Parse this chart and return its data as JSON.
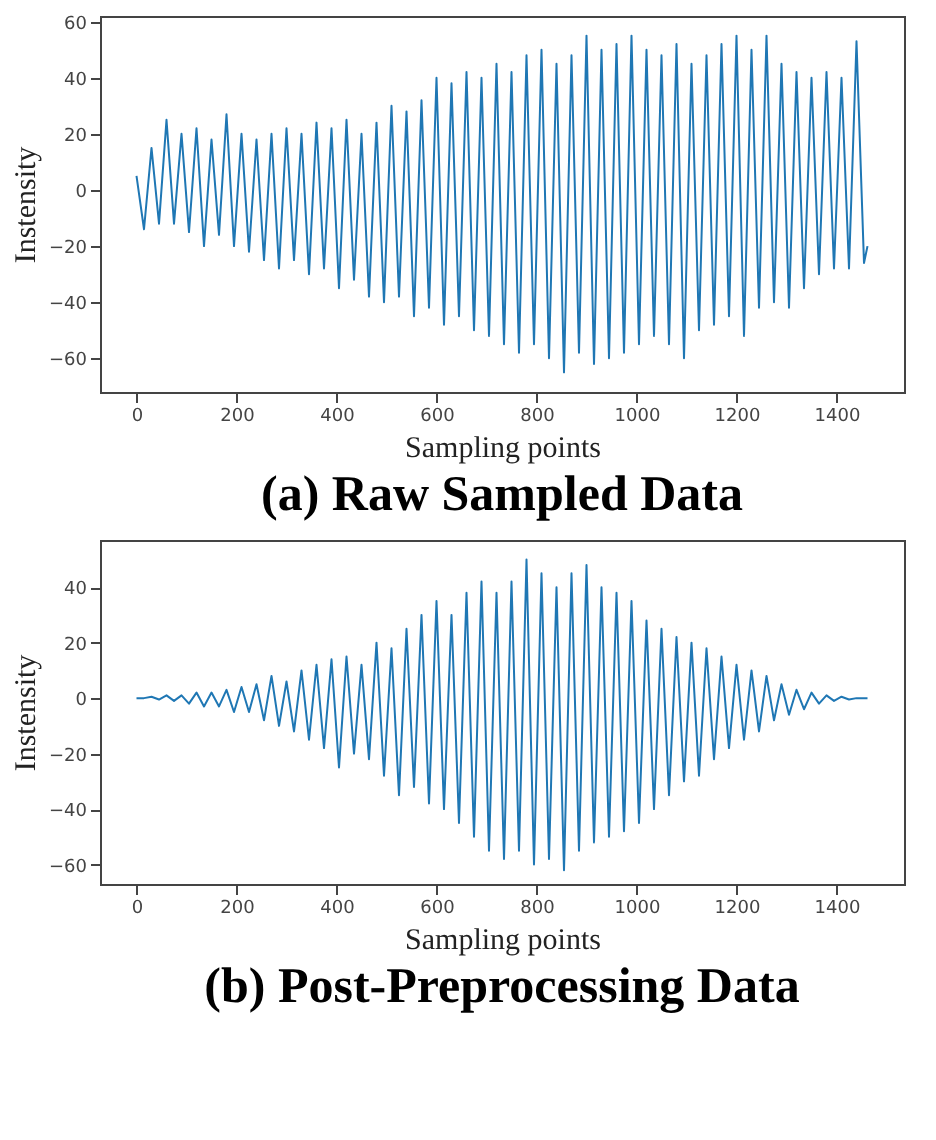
{
  "chart_data": [
    {
      "type": "line",
      "title": "(a) Raw Sampled Data",
      "xlabel": "Sampling points",
      "ylabel": "Instensity",
      "grid": false,
      "xlim": [
        -73,
        1535
      ],
      "ylim": [
        -72,
        62
      ],
      "xticks": [
        0,
        200,
        400,
        600,
        800,
        1000,
        1200,
        1400
      ],
      "yticks": [
        -60,
        -40,
        -20,
        0,
        20,
        40,
        60
      ],
      "x": [
        0,
        15,
        30,
        45,
        60,
        75,
        90,
        105,
        120,
        135,
        150,
        165,
        180,
        195,
        210,
        225,
        240,
        255,
        270,
        285,
        300,
        315,
        330,
        345,
        360,
        375,
        390,
        405,
        420,
        435,
        450,
        465,
        480,
        495,
        510,
        525,
        540,
        555,
        570,
        585,
        600,
        615,
        630,
        645,
        660,
        675,
        690,
        705,
        720,
        735,
        750,
        765,
        780,
        795,
        810,
        825,
        840,
        855,
        870,
        885,
        900,
        915,
        930,
        945,
        960,
        975,
        990,
        1005,
        1020,
        1035,
        1050,
        1065,
        1080,
        1095,
        1110,
        1125,
        1140,
        1155,
        1170,
        1185,
        1200,
        1215,
        1230,
        1245,
        1260,
        1275,
        1290,
        1305,
        1320,
        1335,
        1350,
        1365,
        1380,
        1395,
        1410,
        1425,
        1440,
        1455,
        1462
      ],
      "series": [
        {
          "color": "#1f77b4",
          "values": [
            5,
            -14,
            15,
            -12,
            25,
            -12,
            20,
            -15,
            22,
            -20,
            18,
            -16,
            27,
            -20,
            20,
            -22,
            18,
            -25,
            20,
            -28,
            22,
            -25,
            20,
            -30,
            24,
            -28,
            22,
            -35,
            25,
            -32,
            20,
            -38,
            24,
            -40,
            30,
            -38,
            28,
            -45,
            32,
            -42,
            40,
            -48,
            38,
            -45,
            42,
            -50,
            40,
            -52,
            45,
            -55,
            42,
            -58,
            48,
            -55,
            50,
            -60,
            45,
            -65,
            48,
            -58,
            55,
            -62,
            50,
            -60,
            52,
            -58,
            55,
            -55,
            50,
            -52,
            48,
            -55,
            52,
            -60,
            45,
            -50,
            48,
            -48,
            52,
            -45,
            55,
            -52,
            50,
            -42,
            55,
            -40,
            45,
            -42,
            42,
            -35,
            40,
            -30,
            42,
            -28,
            40,
            -28,
            53,
            -26,
            -20
          ]
        }
      ]
    },
    {
      "type": "line",
      "title": "(b) Post-Preprocessing Data",
      "xlabel": "Sampling points",
      "ylabel": "Instensity",
      "grid": false,
      "xlim": [
        -73,
        1535
      ],
      "ylim": [
        -67,
        57
      ],
      "xticks": [
        0,
        200,
        400,
        600,
        800,
        1000,
        1200,
        1400
      ],
      "yticks": [
        -60,
        -40,
        -20,
        0,
        20,
        40
      ],
      "x": [
        0,
        15,
        30,
        45,
        60,
        75,
        90,
        105,
        120,
        135,
        150,
        165,
        180,
        195,
        210,
        225,
        240,
        255,
        270,
        285,
        300,
        315,
        330,
        345,
        360,
        375,
        390,
        405,
        420,
        435,
        450,
        465,
        480,
        495,
        510,
        525,
        540,
        555,
        570,
        585,
        600,
        615,
        630,
        645,
        660,
        675,
        690,
        705,
        720,
        735,
        750,
        765,
        780,
        795,
        810,
        825,
        840,
        855,
        870,
        885,
        900,
        915,
        930,
        945,
        960,
        975,
        990,
        1005,
        1020,
        1035,
        1050,
        1065,
        1080,
        1095,
        1110,
        1125,
        1140,
        1155,
        1170,
        1185,
        1200,
        1215,
        1230,
        1245,
        1260,
        1275,
        1290,
        1305,
        1320,
        1335,
        1350,
        1365,
        1380,
        1395,
        1410,
        1425,
        1440,
        1455,
        1462
      ],
      "series": [
        {
          "color": "#1f77b4",
          "values": [
            0,
            0,
            0.5,
            -0.5,
            1,
            -1,
            1,
            -2,
            2,
            -3,
            2,
            -3,
            3,
            -5,
            4,
            -5,
            5,
            -8,
            8,
            -10,
            6,
            -12,
            10,
            -15,
            12,
            -18,
            14,
            -25,
            15,
            -20,
            12,
            -22,
            20,
            -28,
            18,
            -35,
            25,
            -32,
            30,
            -38,
            35,
            -40,
            30,
            -45,
            38,
            -50,
            42,
            -55,
            38,
            -58,
            42,
            -55,
            50,
            -60,
            45,
            -58,
            40,
            -62,
            45,
            -55,
            48,
            -52,
            40,
            -50,
            38,
            -48,
            35,
            -45,
            28,
            -40,
            25,
            -35,
            22,
            -30,
            20,
            -28,
            18,
            -22,
            15,
            -18,
            12,
            -15,
            10,
            -12,
            8,
            -8,
            5,
            -6,
            3,
            -4,
            2,
            -2,
            1,
            -1,
            0.5,
            -0.5,
            0,
            0,
            0
          ]
        }
      ]
    }
  ]
}
